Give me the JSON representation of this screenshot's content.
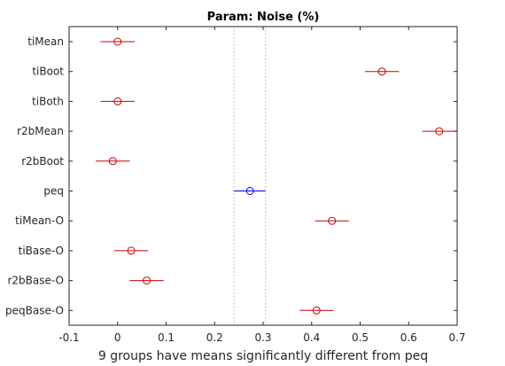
{
  "chart_data": {
    "type": "scatter",
    "title": "Param: Noise (%)",
    "xlabel": "9 groups have means significantly different from peq",
    "ylabel": "",
    "xlim": [
      -0.1,
      0.7
    ],
    "xticks": [
      "-0.1",
      "0",
      "0.1",
      "0.2",
      "0.3",
      "0.4",
      "0.5",
      "0.6",
      "0.7"
    ],
    "grid": false,
    "reference_lines_x": [
      0.24,
      0.305
    ],
    "groups": [
      {
        "label": "tiMean",
        "mean": 0.0,
        "lower": -0.035,
        "upper": 0.035,
        "highlight": false
      },
      {
        "label": "tiBoot",
        "mean": 0.545,
        "lower": 0.51,
        "upper": 0.58,
        "highlight": false
      },
      {
        "label": "tiBoth",
        "mean": 0.0,
        "lower": -0.035,
        "upper": 0.035,
        "highlight": false
      },
      {
        "label": "r2bMean",
        "mean": 0.663,
        "lower": 0.628,
        "upper": 0.7,
        "highlight": false
      },
      {
        "label": "r2bBoot",
        "mean": -0.01,
        "lower": -0.045,
        "upper": 0.025,
        "highlight": false
      },
      {
        "label": "peq",
        "mean": 0.273,
        "lower": 0.24,
        "upper": 0.305,
        "highlight": true
      },
      {
        "label": "tiMean-O",
        "mean": 0.442,
        "lower": 0.407,
        "upper": 0.477,
        "highlight": false
      },
      {
        "label": "tiBase-O",
        "mean": 0.028,
        "lower": -0.007,
        "upper": 0.063,
        "highlight": false
      },
      {
        "label": "r2bBase-O",
        "mean": 0.06,
        "lower": 0.025,
        "upper": 0.095,
        "highlight": false
      },
      {
        "label": "peqBase-O",
        "mean": 0.41,
        "lower": 0.375,
        "upper": 0.445,
        "highlight": false
      }
    ],
    "colors": {
      "group": "#cc0000",
      "highlight": "#0000ee",
      "reference_line": "#b0b0b0",
      "axis": "#262626"
    }
  }
}
